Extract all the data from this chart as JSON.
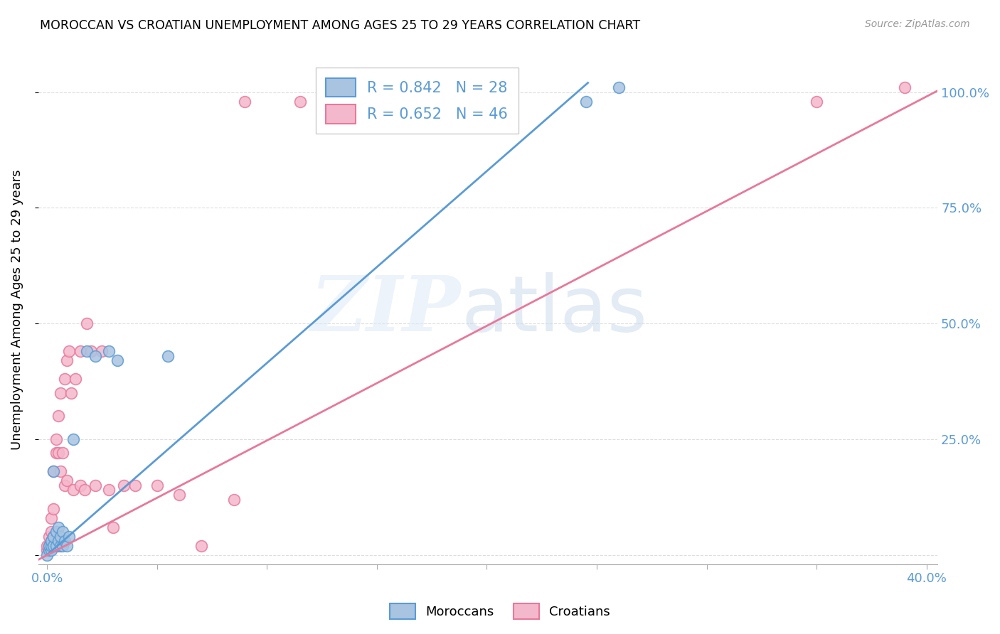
{
  "title": "MOROCCAN VS CROATIAN UNEMPLOYMENT AMONG AGES 25 TO 29 YEARS CORRELATION CHART",
  "source": "Source: ZipAtlas.com",
  "ylabel": "Unemployment Among Ages 25 to 29 years",
  "legend_moroccan": "R = 0.842   N = 28",
  "legend_croatian": "R = 0.652   N = 46",
  "moroccan_color": "#a8c4e0",
  "moroccan_line_color": "#5b9bd5",
  "croatian_color": "#f4b8cc",
  "croatian_line_color": "#e8789a",
  "moroccan_R": 0.842,
  "moroccan_N": 28,
  "croatian_R": 0.652,
  "croatian_N": 46,
  "xmin": 0.0,
  "xmax": 0.4,
  "ymin": 0.0,
  "ymax": 1.05,
  "moroccan_line": [
    [
      0.0,
      0.0
    ],
    [
      0.246,
      1.02
    ]
  ],
  "croatian_line": [
    [
      -0.005,
      -0.013
    ],
    [
      0.42,
      1.04
    ]
  ],
  "moroccan_points": [
    [
      0.0,
      0.0
    ],
    [
      0.001,
      0.01
    ],
    [
      0.001,
      0.02
    ],
    [
      0.002,
      0.01
    ],
    [
      0.002,
      0.02
    ],
    [
      0.002,
      0.03
    ],
    [
      0.003,
      0.02
    ],
    [
      0.003,
      0.04
    ],
    [
      0.003,
      0.18
    ],
    [
      0.004,
      0.02
    ],
    [
      0.004,
      0.05
    ],
    [
      0.005,
      0.03
    ],
    [
      0.005,
      0.06
    ],
    [
      0.006,
      0.02
    ],
    [
      0.006,
      0.04
    ],
    [
      0.007,
      0.02
    ],
    [
      0.007,
      0.05
    ],
    [
      0.008,
      0.03
    ],
    [
      0.009,
      0.02
    ],
    [
      0.01,
      0.04
    ],
    [
      0.012,
      0.25
    ],
    [
      0.018,
      0.44
    ],
    [
      0.022,
      0.43
    ],
    [
      0.028,
      0.44
    ],
    [
      0.032,
      0.42
    ],
    [
      0.055,
      0.43
    ],
    [
      0.245,
      0.98
    ],
    [
      0.26,
      1.01
    ]
  ],
  "croatian_points": [
    [
      0.0,
      0.01
    ],
    [
      0.0,
      0.02
    ],
    [
      0.001,
      0.02
    ],
    [
      0.001,
      0.04
    ],
    [
      0.002,
      0.03
    ],
    [
      0.002,
      0.05
    ],
    [
      0.002,
      0.08
    ],
    [
      0.003,
      0.04
    ],
    [
      0.003,
      0.1
    ],
    [
      0.003,
      0.18
    ],
    [
      0.004,
      0.22
    ],
    [
      0.004,
      0.25
    ],
    [
      0.005,
      0.02
    ],
    [
      0.005,
      0.22
    ],
    [
      0.005,
      0.3
    ],
    [
      0.006,
      0.18
    ],
    [
      0.006,
      0.35
    ],
    [
      0.007,
      0.03
    ],
    [
      0.007,
      0.22
    ],
    [
      0.008,
      0.15
    ],
    [
      0.008,
      0.38
    ],
    [
      0.009,
      0.16
    ],
    [
      0.009,
      0.42
    ],
    [
      0.01,
      0.44
    ],
    [
      0.011,
      0.35
    ],
    [
      0.012,
      0.14
    ],
    [
      0.013,
      0.38
    ],
    [
      0.015,
      0.15
    ],
    [
      0.015,
      0.44
    ],
    [
      0.017,
      0.14
    ],
    [
      0.018,
      0.5
    ],
    [
      0.02,
      0.44
    ],
    [
      0.022,
      0.15
    ],
    [
      0.025,
      0.44
    ],
    [
      0.028,
      0.14
    ],
    [
      0.03,
      0.06
    ],
    [
      0.035,
      0.15
    ],
    [
      0.04,
      0.15
    ],
    [
      0.05,
      0.15
    ],
    [
      0.06,
      0.13
    ],
    [
      0.07,
      0.02
    ],
    [
      0.085,
      0.12
    ],
    [
      0.09,
      0.98
    ],
    [
      0.115,
      0.98
    ],
    [
      0.35,
      0.98
    ],
    [
      0.39,
      1.01
    ]
  ]
}
